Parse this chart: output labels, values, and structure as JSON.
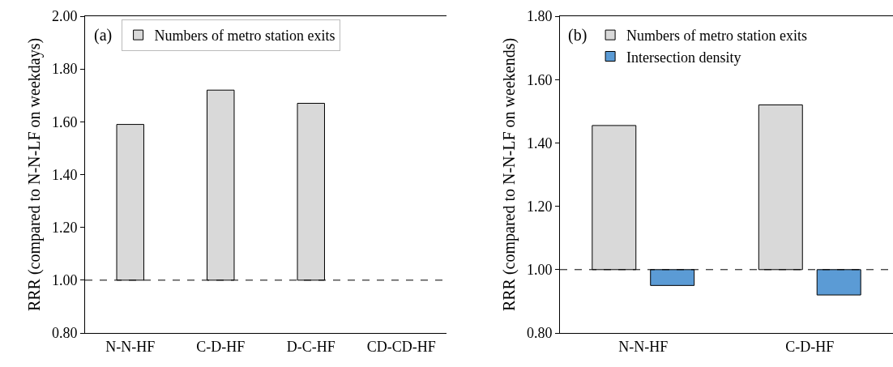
{
  "chart_data": [
    {
      "type": "bar",
      "ylabel": "RRR (compared to N-N-LF on weekdays)",
      "annotations": [
        "(a)"
      ],
      "categories": [
        "N-N-HF",
        "C-D-HF",
        "D-C-HF",
        "CD-CD-HF"
      ],
      "series": [
        {
          "name": "Numbers of metro station exits",
          "color": "#d9d9d9",
          "base": [
            1,
            1,
            1,
            null
          ],
          "values": [
            0.59,
            0.72,
            0.67,
            null
          ]
        }
      ],
      "ylim": [
        0.8,
        2.0
      ],
      "yticks": [
        {
          "value": 0.8,
          "label": "0.80"
        },
        {
          "value": 1.0,
          "label": "1.00"
        },
        {
          "value": 1.2,
          "label": "1.20"
        },
        {
          "value": 1.4,
          "label": "1.40"
        },
        {
          "value": 1.6,
          "label": "1.60"
        },
        {
          "value": 1.8,
          "label": "1.80"
        },
        {
          "value": 2.0,
          "label": "2.00"
        }
      ],
      "ref_lines": [
        {
          "axis": "y",
          "value": 1,
          "line_style": "dashed"
        }
      ],
      "legend": "top left",
      "grid": false
    },
    {
      "type": "bar",
      "ylabel": "RRR (compared to N-N-LF on weekends)",
      "annotations": [
        "(b)"
      ],
      "categories": [
        "N-N-HF",
        "C-D-HF"
      ],
      "series": [
        {
          "name": "Numbers of metro station exits",
          "color": "#d9d9d9",
          "base": [
            1,
            1
          ],
          "values": [
            0.455,
            0.52
          ]
        },
        {
          "name": "Intersection density",
          "color": "#5b9bd5",
          "base": [
            1,
            1
          ],
          "values": [
            -0.05,
            -0.08
          ]
        }
      ],
      "ylim": [
        0.8,
        1.8
      ],
      "yticks": [
        {
          "value": 0.8,
          "label": "0.80"
        },
        {
          "value": 1.0,
          "label": "1.00"
        },
        {
          "value": 1.2,
          "label": "1.20"
        },
        {
          "value": 1.4,
          "label": "1.40"
        },
        {
          "value": 1.6,
          "label": "1.60"
        },
        {
          "value": 1.8,
          "label": "1.80"
        }
      ],
      "ref_lines": [
        {
          "axis": "y",
          "value": 1,
          "line_style": "dashed"
        }
      ],
      "legend": "top left",
      "grid": false
    }
  ]
}
